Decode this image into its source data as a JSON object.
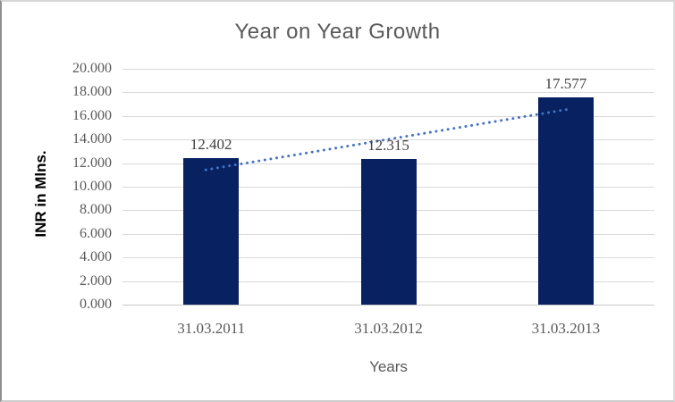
{
  "chart_data": {
    "type": "bar",
    "title": "Year on Year Growth",
    "categories": [
      "31.03.2011",
      "31.03.2012",
      "31.03.2013"
    ],
    "values": [
      12.402,
      12.315,
      17.577
    ],
    "value_labels": [
      "12.402",
      "12.315",
      "17.577"
    ],
    "xlabel": "Years",
    "ylabel": "INR in Mlns.",
    "ylim": [
      0,
      20
    ],
    "ytick_labels": [
      "0.000",
      "2.000",
      "4.000",
      "6.000",
      "8.000",
      "10.000",
      "12.000",
      "14.000",
      "16.000",
      "18.000",
      "20.000"
    ],
    "grid": true,
    "legend": "none",
    "trendline": {
      "type": "linear",
      "style": "dotted"
    },
    "colors": {
      "bar": "#082160",
      "trendline": "#4472C4",
      "title_text": "#595959",
      "axis_text": "#595959",
      "data_label_text": "#404040",
      "gridline": "#d9d9d9",
      "axis_line": "#c8c8c8",
      "background": "#ffffff"
    }
  }
}
